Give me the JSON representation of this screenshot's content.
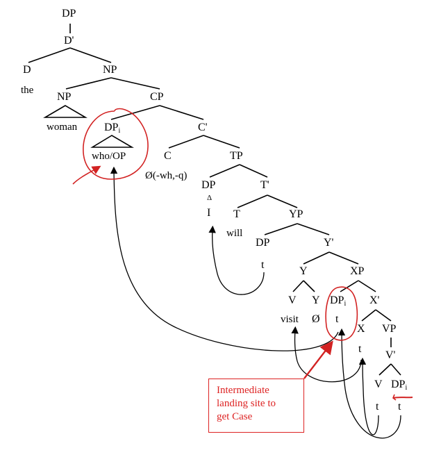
{
  "tree": {
    "dp_root": "DP",
    "d_bar": "D'",
    "d": "D",
    "the": "the",
    "np_top": "NP",
    "np": "NP",
    "cp": "CP",
    "woman": "woman",
    "dp_i": "DP",
    "dp_i_sub": "i",
    "who_op": "who/OP",
    "c_bar": "C'",
    "c": "C",
    "c_null": "Ø(-wh,-q)",
    "tp": "TP",
    "dp_subj": "DP",
    "delta": "Δ",
    "i_word": "I",
    "t_bar": "T'",
    "t_head": "T",
    "will": "will",
    "yp": "YP",
    "dp_spec_y": "DP",
    "trace_spec_y": "t",
    "y_bar": "Y'",
    "y": "Y",
    "xp": "XP",
    "v_upper": "V",
    "y_lower": "Y",
    "dp_spec_x": "DP",
    "dp_spec_x_sub": "i",
    "x_bar": "X'",
    "visit": "visit",
    "null_y": "Ø",
    "trace_spec_x": "t",
    "x": "X",
    "vp": "VP",
    "trace_x": "t",
    "v_bar": "V'",
    "v_lower": "V",
    "dp_obj": "DP",
    "dp_obj_sub": "i",
    "trace_v": "t",
    "trace_obj": "t"
  },
  "annotation": {
    "line1": "Intermediate",
    "line2": "landing site to",
    "line3": "get Case",
    "color": "#d22222"
  }
}
